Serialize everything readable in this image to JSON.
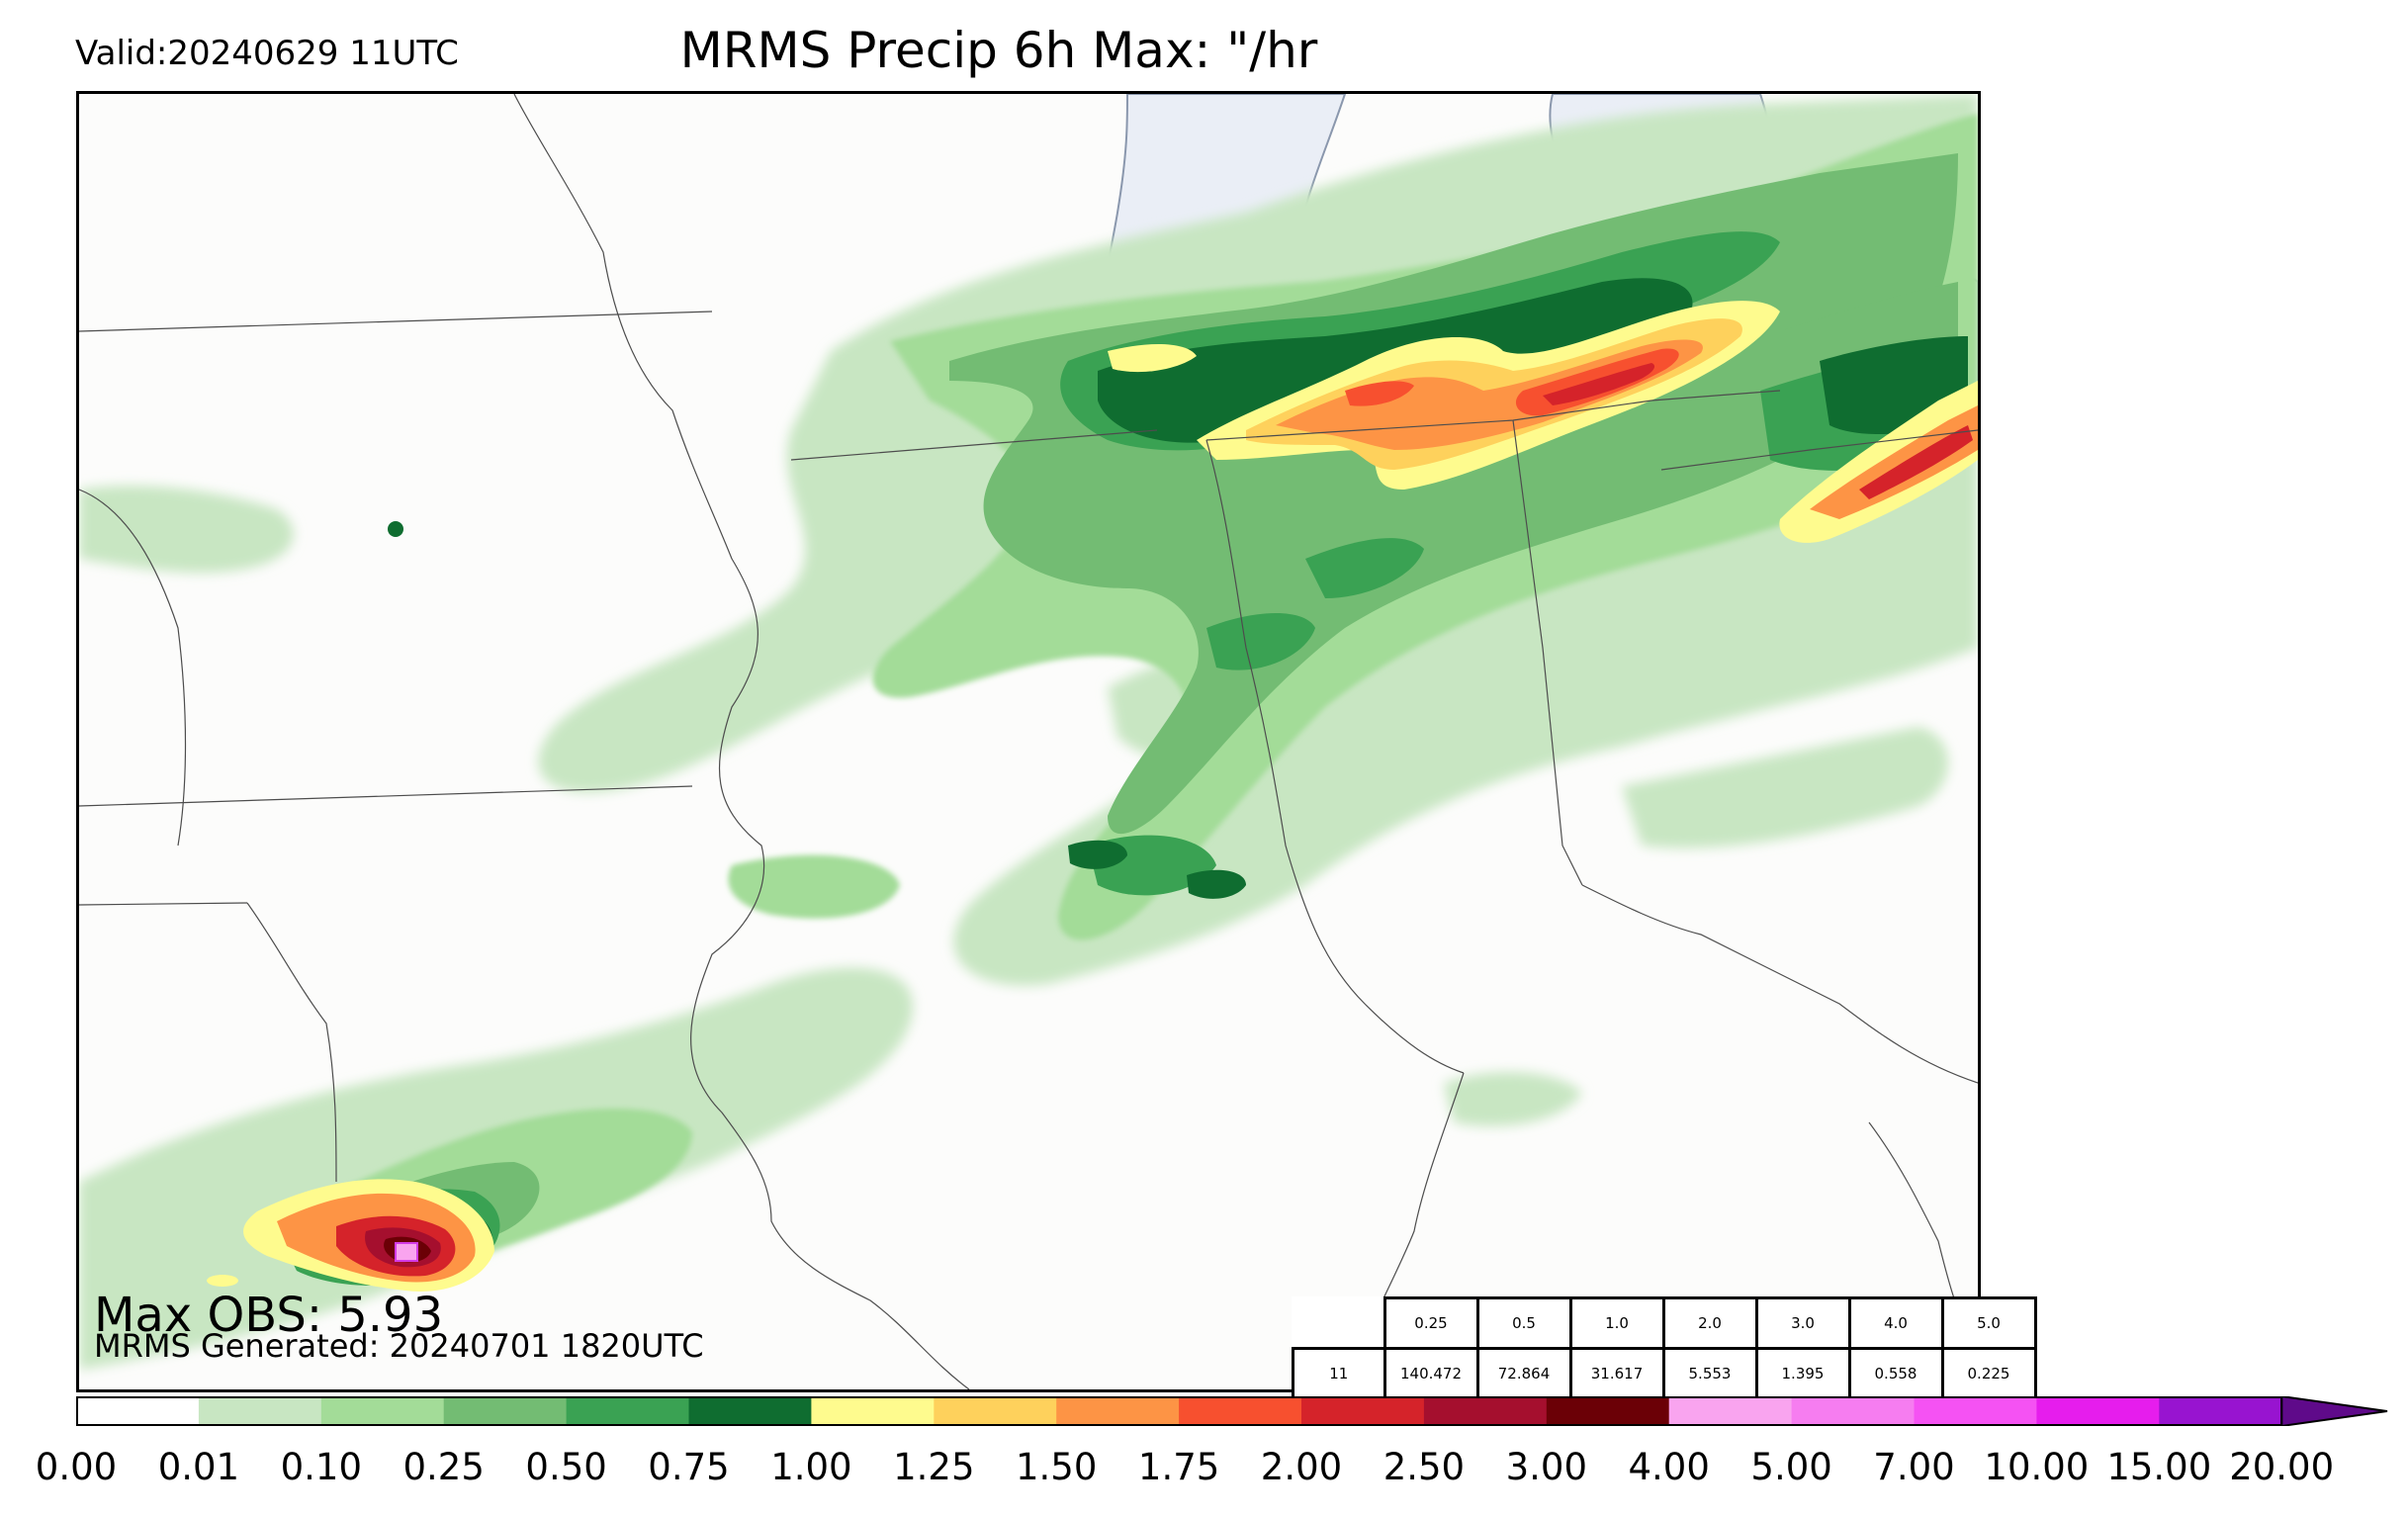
{
  "header": {
    "valid": "Valid:20240629 11UTC",
    "title": "MRMS Precip 6h Max: \"/hr"
  },
  "footer": {
    "max_obs": "Max OBS: 5.93",
    "generated": "MRMS Generated: 20240701 1820UTC"
  },
  "stats_table": {
    "thresholds": [
      "0.25",
      "0.5",
      "1.0",
      "2.0",
      "3.0",
      "4.0",
      "5.0"
    ],
    "row_label": "11",
    "values": [
      "140.472",
      "72.864",
      "31.617",
      "5.553",
      "1.395",
      "0.558",
      "0.225"
    ]
  },
  "colorbar": {
    "ticks": [
      "0.00",
      "0.01",
      "0.10",
      "0.25",
      "0.50",
      "0.75",
      "1.00",
      "1.25",
      "1.50",
      "1.75",
      "2.00",
      "2.50",
      "3.00",
      "4.00",
      "5.00",
      "7.00",
      "10.00",
      "15.00",
      "20.00"
    ],
    "colors": [
      "#ffffff",
      "#c8e6c2",
      "#a3dc98",
      "#73bc73",
      "#3aa253",
      "#0f6d30",
      "#fefb8e",
      "#fed15c",
      "#fd9445",
      "#f7502f",
      "#d5232a",
      "#a50f2e",
      "#6b0006",
      "#f9a4ef",
      "#f67df0",
      "#f552f3",
      "#e61ded",
      "#9814d0"
    ],
    "extend_color": "#5f0a8a"
  },
  "map": {
    "region": "Upper Midwest / Ohio Valley",
    "precip_palette_note": "shaded precipitation rate bands"
  }
}
